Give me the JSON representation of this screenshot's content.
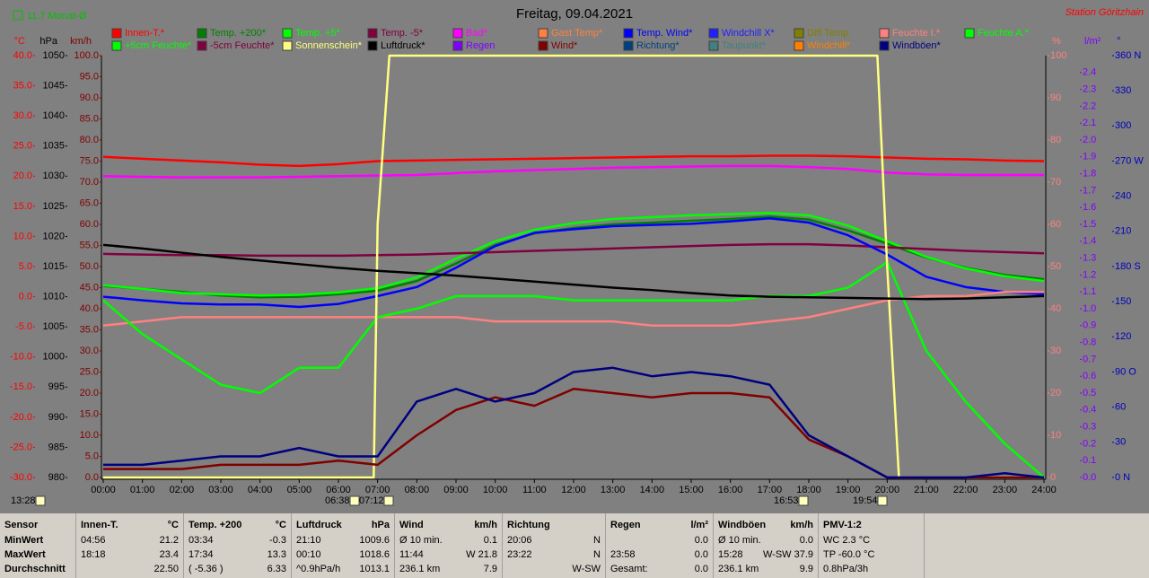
{
  "header": {
    "monthly_avg": "11.7 Monat-Ø",
    "station": "Station Göritzhain"
  },
  "chart_data": {
    "type": "line",
    "title": "Freitag, 09.04.2021",
    "x": [
      0,
      1,
      2,
      3,
      4,
      5,
      6,
      7,
      8,
      9,
      10,
      11,
      12,
      13,
      14,
      15,
      16,
      17,
      18,
      19,
      20,
      21,
      22,
      23,
      24
    ],
    "xlim": [
      0,
      24
    ],
    "xticks": [
      {
        "value": 0,
        "label": "00:00"
      },
      {
        "value": 1,
        "label": "01:00"
      },
      {
        "value": 2,
        "label": "02:00"
      },
      {
        "value": 3,
        "label": "03:00"
      },
      {
        "value": 4,
        "label": "04:00"
      },
      {
        "value": 5,
        "label": "05:00"
      },
      {
        "value": 6,
        "label": "06:00"
      },
      {
        "value": 7,
        "label": "07:00"
      },
      {
        "value": 8,
        "label": "08:00"
      },
      {
        "value": 9,
        "label": "09:00"
      },
      {
        "value": 10,
        "label": "10:00"
      },
      {
        "value": 11,
        "label": "11:00"
      },
      {
        "value": 12,
        "label": "12:00"
      },
      {
        "value": 13,
        "label": "13:00"
      },
      {
        "value": 14,
        "label": "14:00"
      },
      {
        "value": 15,
        "label": "15:00"
      },
      {
        "value": 16,
        "label": "16:00"
      },
      {
        "value": 17,
        "label": "17:00"
      },
      {
        "value": 18,
        "label": "18:00"
      },
      {
        "value": 19,
        "label": "19:00"
      },
      {
        "value": 20,
        "label": "20:00"
      },
      {
        "value": 21,
        "label": "21:00"
      },
      {
        "value": 22,
        "label": "22:00"
      },
      {
        "value": 23,
        "label": "23:00"
      },
      {
        "value": 24,
        "label": "24:00"
      }
    ],
    "axes": {
      "temp": {
        "label": "°C",
        "color": "#ff0000",
        "side": "left",
        "lim": [
          -30,
          40
        ],
        "ticks": [
          {
            "value": 40,
            "label": "40.0"
          },
          {
            "value": 35,
            "label": "35.0"
          },
          {
            "value": 30,
            "label": "30.0"
          },
          {
            "value": 25,
            "label": "25.0"
          },
          {
            "value": 20,
            "label": "20.0"
          },
          {
            "value": 15,
            "label": "15.0"
          },
          {
            "value": 10,
            "label": "10.0"
          },
          {
            "value": 5,
            "label": "5.0"
          },
          {
            "value": 0,
            "label": "0.0"
          },
          {
            "value": -5,
            "label": "-5.0"
          },
          {
            "value": -10,
            "label": "-10.0"
          },
          {
            "value": -15,
            "label": "-15.0"
          },
          {
            "value": -20,
            "label": "-20.0"
          },
          {
            "value": -25,
            "label": "-25.0"
          },
          {
            "value": -30,
            "label": "-30.0"
          }
        ]
      },
      "pressure": {
        "label": "hPa",
        "color": "#000000",
        "side": "left",
        "lim": [
          980,
          1050
        ],
        "ticks": [
          1050,
          1045,
          1040,
          1035,
          1030,
          1025,
          1020,
          1015,
          1010,
          1005,
          1000,
          995,
          990,
          985,
          980
        ]
      },
      "wind": {
        "label": "km/h",
        "color": "#800000",
        "side": "left",
        "lim": [
          0,
          100
        ],
        "ticks": [
          {
            "value": 100,
            "label": "100.0"
          },
          {
            "value": 95,
            "label": "95.0"
          },
          {
            "value": 90,
            "label": "90.0"
          },
          {
            "value": 85,
            "label": "85.0"
          },
          {
            "value": 80,
            "label": "80.0"
          },
          {
            "value": 75,
            "label": "75.0"
          },
          {
            "value": 70,
            "label": "70.0"
          },
          {
            "value": 65,
            "label": "65.0"
          },
          {
            "value": 60,
            "label": "60.0"
          },
          {
            "value": 55,
            "label": "55.0"
          },
          {
            "value": 50,
            "label": "50.0"
          },
          {
            "value": 45,
            "label": "45.0"
          },
          {
            "value": 40,
            "label": "40.0"
          },
          {
            "value": 35,
            "label": "35.0"
          },
          {
            "value": 30,
            "label": "30.0"
          },
          {
            "value": 25,
            "label": "25.0"
          },
          {
            "value": 20,
            "label": "20.0"
          },
          {
            "value": 15,
            "label": "15.0"
          },
          {
            "value": 10,
            "label": "10.0"
          },
          {
            "value": 5,
            "label": "5.0"
          },
          {
            "value": 0,
            "label": "0.0"
          }
        ]
      },
      "humidity": {
        "label": "%",
        "color": "#ff8080",
        "side": "right",
        "lim": [
          0,
          100
        ],
        "ticks": [
          100,
          90,
          80,
          70,
          60,
          50,
          40,
          30,
          20,
          10,
          0
        ]
      },
      "rain": {
        "label": "l/m²",
        "color": "#8000ff",
        "side": "right",
        "lim": [
          0,
          2.5
        ],
        "ticks": [
          2.4,
          2.3,
          2.2,
          2.1,
          {
            "value": 2,
            "label": "2.0"
          },
          1.9,
          1.8,
          1.7,
          1.6,
          1.5,
          1.4,
          1.3,
          1.2,
          1.1,
          {
            "value": 1,
            "label": "1.0"
          },
          0.9,
          0.8,
          0.7,
          0.6,
          0.5,
          0.4,
          0.3,
          0.2,
          0.1,
          {
            "value": 0,
            "label": "0.0"
          }
        ]
      },
      "direction": {
        "label": "°",
        "color": "#0000c0",
        "side": "right",
        "lim": [
          0,
          360
        ],
        "ticks": [
          {
            "value": 360,
            "label": "360 N"
          },
          330,
          300,
          {
            "value": 270,
            "label": "270 W"
          },
          240,
          210,
          {
            "value": 180,
            "label": "180 S"
          },
          150,
          120,
          {
            "value": 90,
            "label": "90 O"
          },
          60,
          30,
          {
            "value": 0,
            "label": "0 N"
          }
        ]
      }
    },
    "series": [
      {
        "name": "Innen-T.*",
        "color": "#ff0000",
        "axis": "temp",
        "values": [
          23.2,
          22.9,
          22.6,
          22.3,
          21.9,
          21.7,
          22.0,
          22.5,
          22.6,
          22.7,
          22.8,
          22.9,
          23.0,
          23.1,
          23.2,
          23.3,
          23.3,
          23.4,
          23.4,
          23.3,
          23.1,
          22.9,
          22.8,
          22.6,
          22.5
        ]
      },
      {
        "name": "Temp. +200*",
        "color": "#008000",
        "axis": "temp",
        "values": [
          1.8,
          1.3,
          0.8,
          0.2,
          -0.1,
          0.0,
          0.4,
          1.0,
          2.6,
          5.5,
          8.6,
          10.5,
          11.4,
          12.0,
          12.3,
          12.6,
          12.9,
          13.3,
          12.8,
          11.0,
          8.8,
          6.5,
          4.8,
          3.6,
          2.9
        ]
      },
      {
        "name": "Temp. +5*",
        "color": "#00ff00",
        "axis": "temp",
        "values": [
          1.9,
          1.3,
          0.6,
          0.4,
          0.2,
          0.3,
          0.7,
          1.4,
          3.2,
          6.3,
          9.2,
          11.1,
          12.2,
          12.9,
          13.2,
          13.5,
          13.7,
          13.9,
          13.5,
          11.8,
          9.2,
          6.6,
          4.7,
          3.4,
          2.6
        ]
      },
      {
        "name": "Temp. -5*",
        "color": "#800040",
        "axis": "temp",
        "values": [
          7.1,
          7.0,
          6.9,
          6.9,
          6.8,
          6.8,
          6.8,
          6.9,
          7.0,
          7.2,
          7.4,
          7.6,
          7.8,
          8.0,
          8.2,
          8.4,
          8.6,
          8.7,
          8.7,
          8.5,
          8.2,
          7.9,
          7.6,
          7.4,
          7.2
        ]
      },
      {
        "name": "Bad*",
        "color": "#ff00ff",
        "axis": "temp",
        "values": [
          20.0,
          19.9,
          19.8,
          19.8,
          19.8,
          19.9,
          20.0,
          20.1,
          20.2,
          20.5,
          20.8,
          21.0,
          21.2,
          21.4,
          21.5,
          21.6,
          21.7,
          21.7,
          21.5,
          21.2,
          20.6,
          20.3,
          20.2,
          20.2,
          20.2
        ]
      },
      {
        "name": "Gast Temp*",
        "color": "#ff8040"
      },
      {
        "name": "Temp. Wind*",
        "color": "#0000ff",
        "axis": "temp",
        "values": [
          0.0,
          -0.6,
          -1.1,
          -1.3,
          -1.3,
          -1.7,
          -1.2,
          0.1,
          1.6,
          4.8,
          8.4,
          10.6,
          11.2,
          11.7,
          11.9,
          12.1,
          12.5,
          13.0,
          12.3,
          10.2,
          7.0,
          3.3,
          1.6,
          0.8,
          0.4
        ]
      },
      {
        "name": "Windchill X*",
        "color": "#2020ff"
      },
      {
        "name": "Diff Temp.",
        "color": "#808000"
      },
      {
        "name": "Feuchte I.*",
        "color": "#ff8080",
        "axis": "humidity",
        "values": [
          36,
          37,
          38,
          38,
          38,
          38,
          38,
          38,
          38,
          38,
          37,
          37,
          37,
          37,
          36,
          36,
          36,
          37,
          38,
          40,
          42,
          43,
          43,
          44,
          44
        ]
      },
      {
        "name": "Feuchte A.*",
        "color": "#00ff00",
        "axis": "humidity",
        "values": [
          42,
          34,
          28,
          22,
          20,
          26,
          26,
          38,
          40,
          43,
          43,
          43,
          42,
          42,
          42,
          42,
          42,
          43,
          43,
          45,
          51,
          30,
          18,
          8,
          0
        ]
      },
      {
        "name": "+5cm Feuchte*",
        "color": "#00ff00"
      },
      {
        "name": "-5cm Feuchte*",
        "color": "#800040"
      },
      {
        "name": "Sonnenschein*",
        "color": "#ffff80",
        "axis": "humidity",
        "x": [
          0,
          6.9,
          7.0,
          7.3,
          19.75,
          20.0,
          20.3,
          24
        ],
        "values": [
          0,
          0,
          60,
          100,
          100,
          50,
          0,
          0
        ]
      },
      {
        "name": "Luftdruck*",
        "color": "#000000",
        "axis": "pressure",
        "values": [
          1018.6,
          1018.0,
          1017.3,
          1016.6,
          1016.0,
          1015.4,
          1014.8,
          1014.3,
          1013.9,
          1013.5,
          1013.0,
          1012.5,
          1012.0,
          1011.5,
          1011.1,
          1010.6,
          1010.2,
          1010.0,
          1009.9,
          1009.8,
          1009.7,
          1009.6,
          1009.7,
          1009.9,
          1010.1
        ]
      },
      {
        "name": "Regen",
        "color": "#8000ff"
      },
      {
        "name": "Wind*",
        "color": "#800000",
        "axis": "wind",
        "values": [
          2,
          2,
          2,
          3,
          3,
          3,
          4,
          3,
          10,
          16,
          19,
          17,
          21,
          20,
          19,
          20,
          20,
          19,
          9,
          5,
          0,
          0,
          0,
          0,
          0
        ]
      },
      {
        "name": "Richtung*",
        "color": "#004080"
      },
      {
        "name": "Taupunkt*",
        "color": "#408080"
      },
      {
        "name": "Windchill*",
        "color": "#ff8000"
      },
      {
        "name": "Windböen*",
        "color": "#000080",
        "axis": "wind",
        "values": [
          3,
          3,
          4,
          5,
          5,
          7,
          5,
          5,
          18,
          21,
          18,
          20,
          25,
          26,
          24,
          25,
          24,
          22,
          10,
          5,
          0,
          0,
          0,
          1,
          0
        ]
      }
    ],
    "annotations": [
      "13:28",
      "06:38",
      "07:12",
      "16:53",
      "19:54"
    ]
  },
  "table": {
    "columns": [
      {
        "name": "Sensor"
      },
      {
        "name": "Innen-T.",
        "unit": "°C"
      },
      {
        "name": "Temp. +200",
        "unit": "°C"
      },
      {
        "name": "Luftdruck",
        "unit": "hPa"
      },
      {
        "name": "Wind",
        "unit": "km/h"
      },
      {
        "name": "Richtung"
      },
      {
        "name": "Regen",
        "unit": "l/m²"
      },
      {
        "name": "Windböen",
        "unit": "km/h"
      },
      {
        "name": "PMV-1:2"
      }
    ],
    "rows": [
      {
        "label": "MinWert",
        "cells": [
          [
            "04:56",
            "21.2"
          ],
          [
            "03:34",
            "-0.3"
          ],
          [
            "21:10",
            "1009.6"
          ],
          [
            "Ø 10 min.",
            "0.1"
          ],
          [
            "20:06",
            "N"
          ],
          [
            "0.0"
          ],
          [
            "Ø 10 min.",
            "0.0"
          ],
          [
            "WC 2.3 °C"
          ]
        ]
      },
      {
        "label": "MaxWert",
        "cells": [
          [
            "18:18",
            "23.4"
          ],
          [
            "17:34",
            "13.3"
          ],
          [
            "00:10",
            "1018.6"
          ],
          [
            "11:44",
            "W 21.8"
          ],
          [
            "23:22",
            "N"
          ],
          [
            "23:58",
            "0.0"
          ],
          [
            "15:28",
            "W-SW 37.9"
          ],
          [
            "TP -60.0 °C"
          ]
        ]
      },
      {
        "label": "Durchschnitt",
        "cells": [
          [
            "22.50"
          ],
          [
            "( -5.36 )",
            "6.33"
          ],
          [
            "^0.9hPa/h",
            "1013.1"
          ],
          [
            "236.1 km",
            "7.9"
          ],
          [
            "W-SW"
          ],
          [
            "Gesamt:",
            "0.0"
          ],
          [
            "236.1 km",
            "9.9"
          ],
          [
            "0.8hPa/3h"
          ]
        ]
      }
    ]
  }
}
